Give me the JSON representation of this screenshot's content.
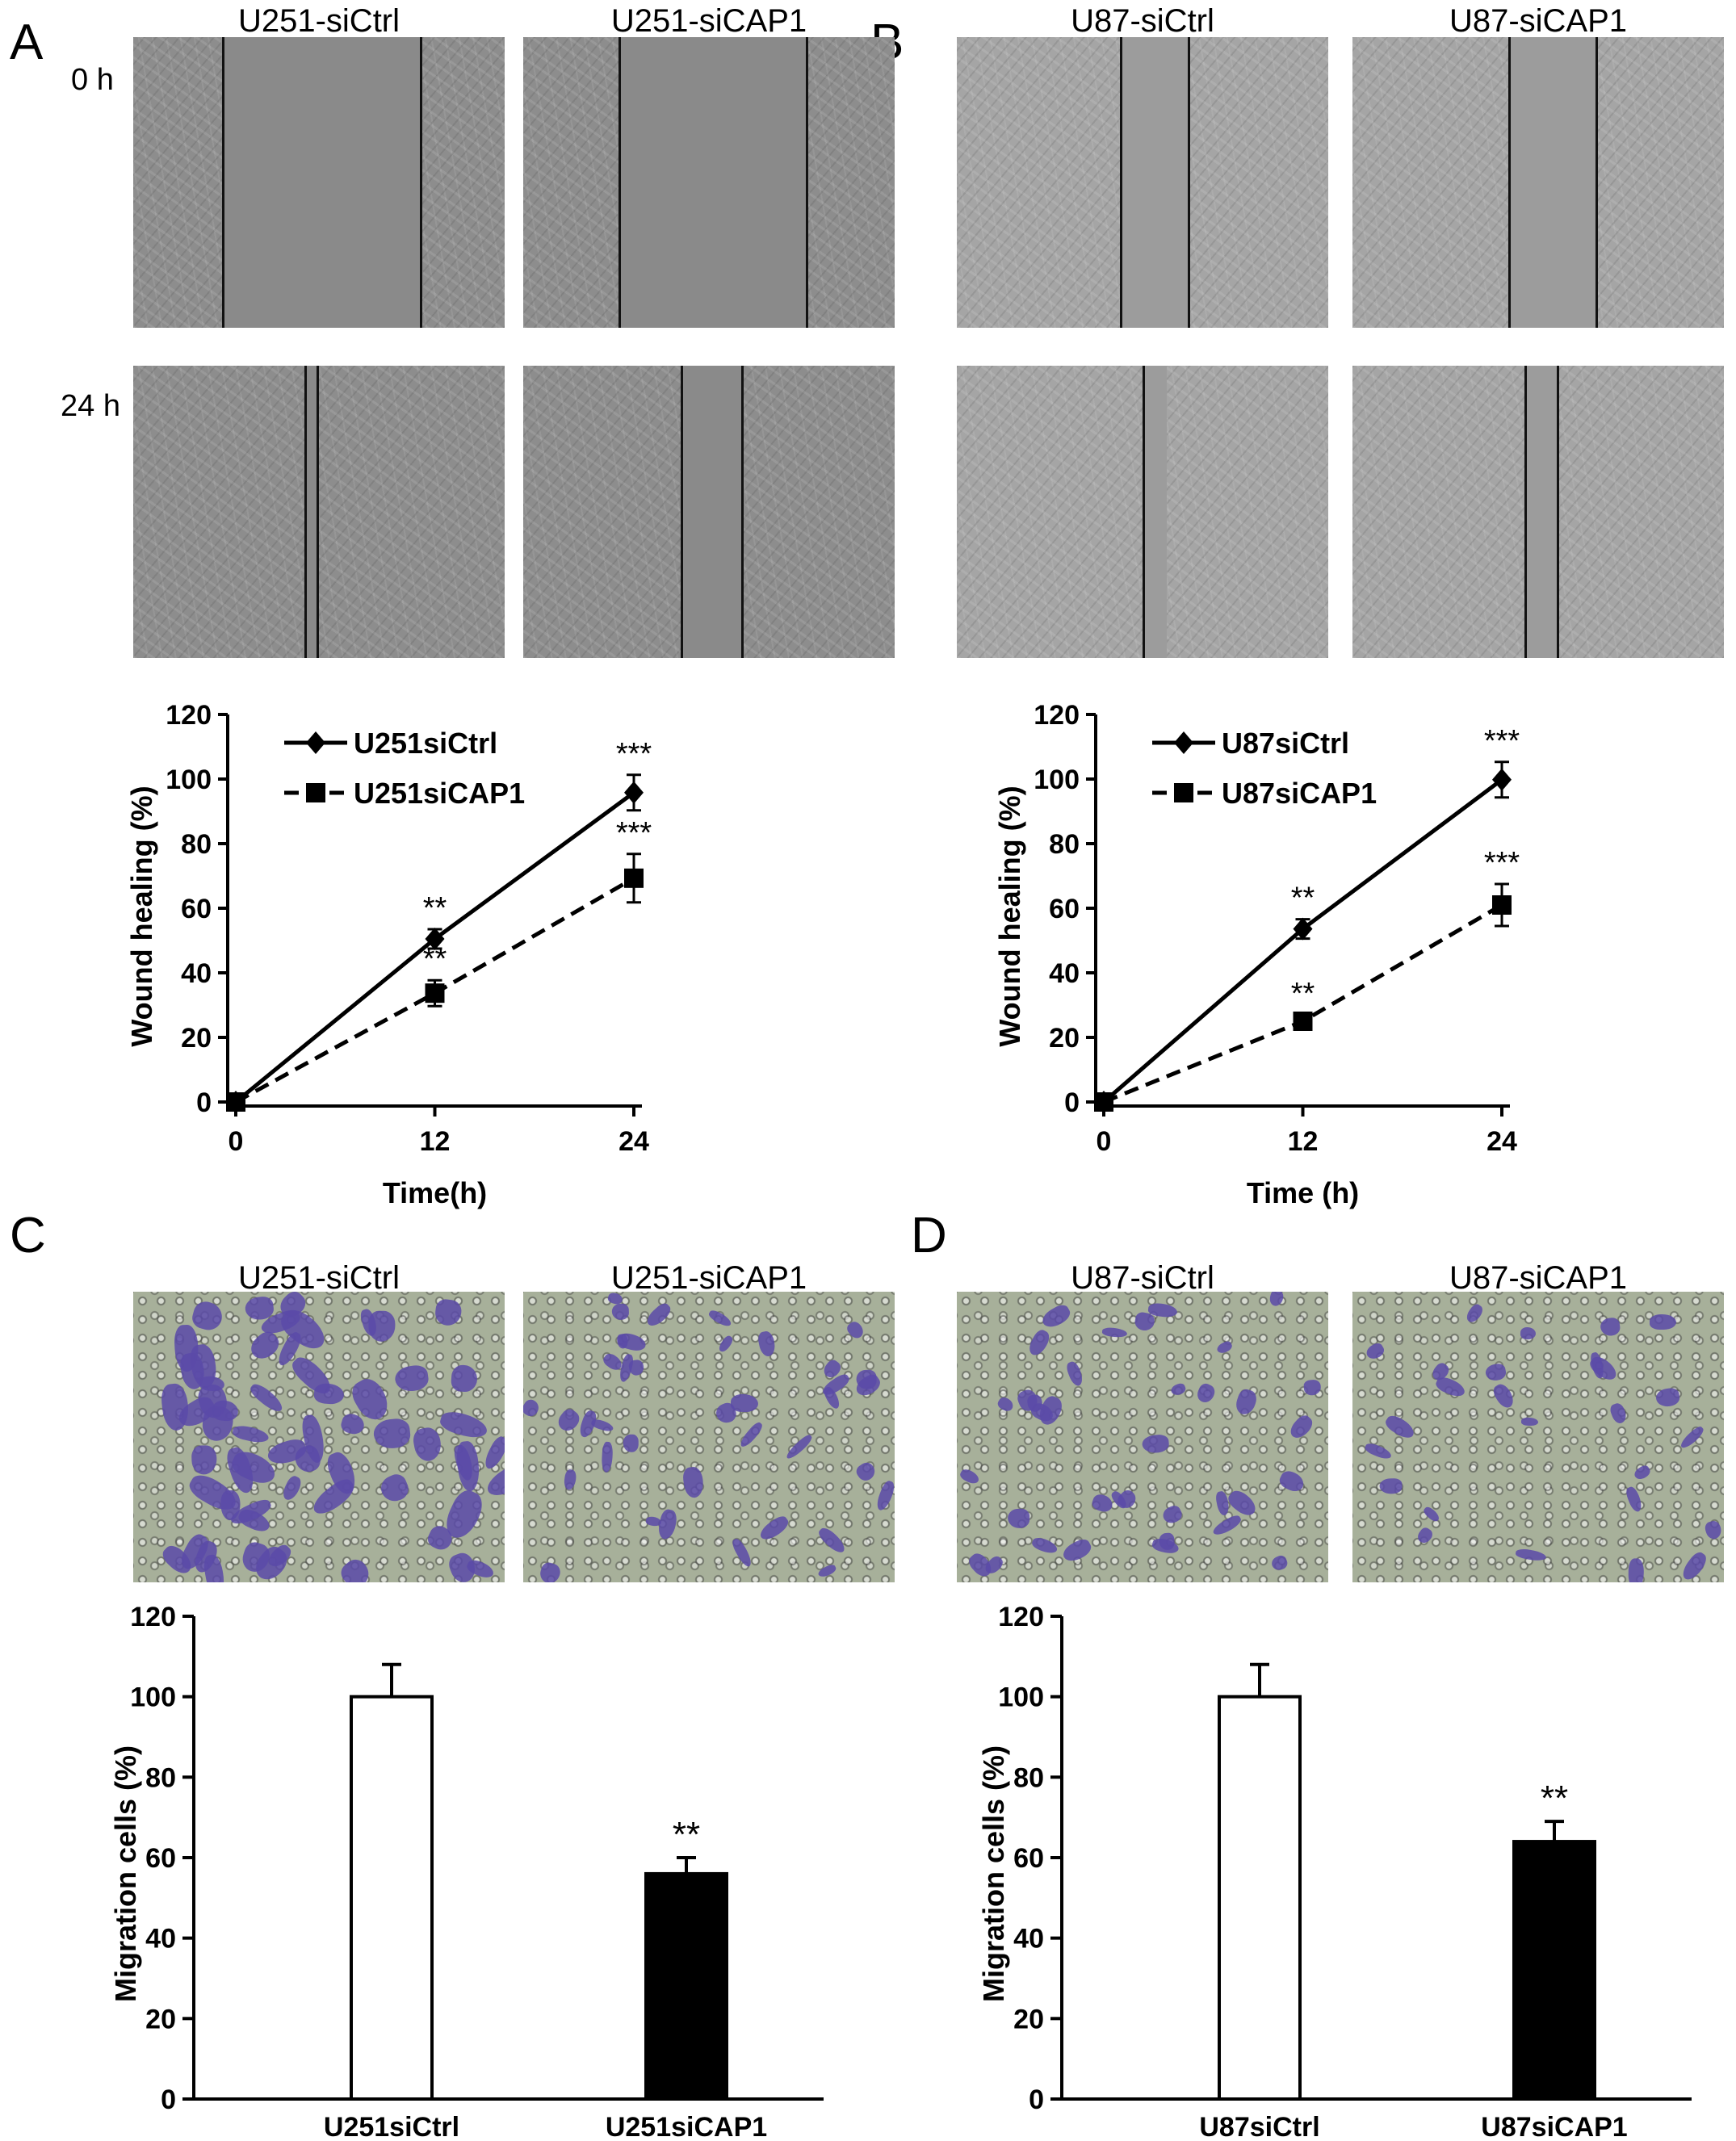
{
  "panels": {
    "A": {
      "letter": "A",
      "title_left": "U251-siCtrl",
      "title_right": "U251-siCAP1"
    },
    "B": {
      "letter": "B",
      "title_left": "U87-siCtrl",
      "title_right": "U87-siCAP1"
    },
    "C": {
      "letter": "C",
      "title_left": "U251-siCtrl",
      "title_right": "U251-siCAP1"
    },
    "D": {
      "letter": "D",
      "title_left": "U87-siCtrl",
      "title_right": "U87-siCAP1"
    }
  },
  "time_labels": [
    "0 h",
    "24 h"
  ],
  "colors": {
    "line": "#000000",
    "bar_ctrl": "#ffffff",
    "bar_cap1": "#000000",
    "stain": "#5b4aa8"
  },
  "chart_data": [
    {
      "id": "A",
      "type": "line",
      "xlabel": "Time(h)",
      "ylabel": "Wound healing (%)",
      "x": [
        0,
        12,
        24
      ],
      "xticks": [
        "0",
        "12",
        "24"
      ],
      "yticks": [
        "0",
        "20",
        "40",
        "60",
        "80",
        "100",
        "120"
      ],
      "ylim": [
        0,
        120
      ],
      "legend_position": "top-left",
      "series": [
        {
          "name": "U251siCtrl",
          "values": [
            0,
            50.5,
            95.8
          ],
          "errors": [
            0,
            3,
            5.5
          ],
          "marker": "diamond",
          "dash": "solid",
          "annotations": [
            "",
            "**",
            "***"
          ]
        },
        {
          "name": "U251siCAP1",
          "values": [
            0,
            33.7,
            69.3
          ],
          "errors": [
            0,
            4,
            7.5
          ],
          "marker": "square",
          "dash": "dashed",
          "annotations": [
            "",
            "**",
            "***"
          ]
        }
      ]
    },
    {
      "id": "B",
      "type": "line",
      "xlabel": "Time  (h)",
      "ylabel": "Wound healing (%)",
      "x": [
        0,
        12,
        24
      ],
      "xticks": [
        "0",
        "12",
        "24"
      ],
      "yticks": [
        "0",
        "20",
        "40",
        "60",
        "80",
        "100",
        "120"
      ],
      "ylim": [
        0,
        120
      ],
      "legend_position": "top-left",
      "series": [
        {
          "name": "U87siCtrl",
          "values": [
            0,
            53.6,
            99.8
          ],
          "errors": [
            0,
            3,
            5.5
          ],
          "marker": "diamond",
          "dash": "solid",
          "annotations": [
            "",
            "**",
            "***"
          ]
        },
        {
          "name": "U87siCAP1",
          "values": [
            0,
            25,
            61
          ],
          "errors": [
            0,
            2,
            6.5
          ],
          "marker": "square",
          "dash": "dashed",
          "annotations": [
            "",
            "**",
            "***"
          ]
        }
      ]
    },
    {
      "id": "C",
      "type": "bar",
      "ylabel": "Migration cells (%)",
      "categories": [
        "U251siCtrl",
        "U251siCAP1"
      ],
      "values": [
        100,
        56
      ],
      "errors": [
        8,
        4
      ],
      "annotations": [
        "",
        "**"
      ],
      "yticks": [
        "0",
        "20",
        "40",
        "60",
        "80",
        "100",
        "120"
      ],
      "ylim": [
        0,
        120
      ]
    },
    {
      "id": "D",
      "type": "bar",
      "ylabel": "Migration cells (%)",
      "categories": [
        "U87siCtrl",
        "U87siCAP1"
      ],
      "values": [
        100,
        64
      ],
      "errors": [
        8,
        5
      ],
      "annotations": [
        "",
        "**"
      ],
      "yticks": [
        "0",
        "20",
        "40",
        "60",
        "80",
        "100",
        "120"
      ],
      "ylim": [
        0,
        120
      ]
    }
  ]
}
